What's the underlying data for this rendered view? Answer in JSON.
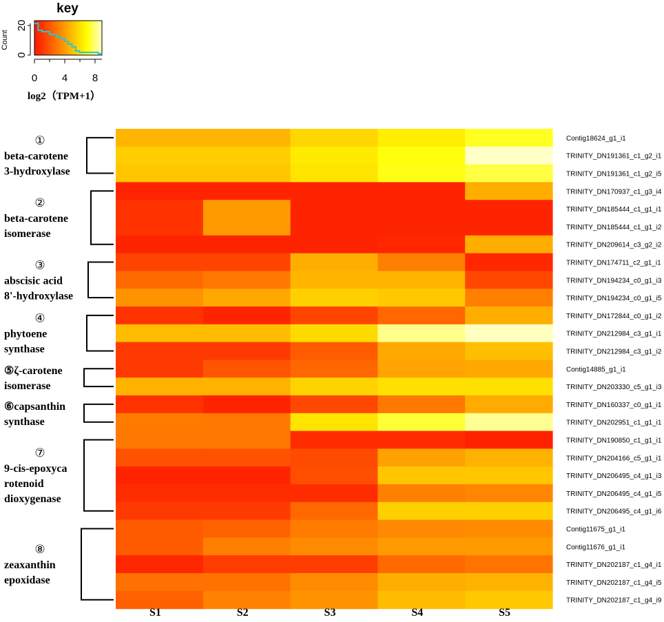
{
  "chart_data": {
    "type": "heatmap",
    "key": {
      "title": "key",
      "ylabel": "Count",
      "yticks": [
        "0",
        "20"
      ],
      "xticks": [
        "0",
        "4",
        "8"
      ],
      "xlabel": "log2（TPM+1）",
      "range": [
        0,
        9
      ],
      "histogram": [
        23,
        18,
        17,
        17,
        15,
        15,
        13,
        12,
        10,
        8,
        6,
        3,
        2,
        2,
        2,
        2,
        2,
        1
      ],
      "palette": [
        "#ff1a00",
        "#ff3300",
        "#ff5500",
        "#ff7800",
        "#ff9a00",
        "#ffbc00",
        "#ffdd00",
        "#ffff00",
        "#ffff70",
        "#ffffc8"
      ]
    },
    "samples": [
      "S1",
      "S2",
      "S3",
      "S4",
      "S5"
    ],
    "rows": [
      {
        "label": "Contig18624_g1_i1",
        "values": [
          4.8,
          4.8,
          5.8,
          6.5,
          7.3
        ]
      },
      {
        "label": "TRINITY_DN191361_c1_g2_i1",
        "values": [
          5.5,
          5.5,
          6.4,
          7.1,
          9.0
        ]
      },
      {
        "label": "TRINITY_DN191361_c1_g2_i5",
        "values": [
          5.3,
          5.3,
          6.2,
          7.2,
          7.6
        ]
      },
      {
        "label": "TRINITY_DN170937_c1_g3_i4",
        "values": [
          0.4,
          0.4,
          0.4,
          0.4,
          4.6
        ]
      },
      {
        "label": "TRINITY_DN185444_c1_g1_i1",
        "values": [
          1.0,
          4.0,
          0.4,
          0.4,
          0.4
        ]
      },
      {
        "label": "TRINITY_DN185444_c1_g1_i2",
        "values": [
          1.0,
          4.0,
          0.4,
          0.4,
          0.4
        ]
      },
      {
        "label": "TRINITY_DN209614_c3_g2_i2",
        "values": [
          0.4,
          0.4,
          0.4,
          0.5,
          4.6
        ]
      },
      {
        "label": "TRINITY_DN174711_c2_g1_i1",
        "values": [
          1.5,
          1.5,
          4.6,
          3.2,
          0.5
        ]
      },
      {
        "label": "TRINITY_DN194234_c0_g1_i3",
        "values": [
          2.6,
          3.0,
          4.8,
          4.8,
          1.6
        ]
      },
      {
        "label": "TRINITY_DN194234_c0_g1_i5",
        "values": [
          3.8,
          4.4,
          5.6,
          5.4,
          3.2
        ]
      },
      {
        "label": "TRINITY_DN172844_c0_g1_i2",
        "values": [
          1.0,
          0.4,
          1.5,
          2.5,
          4.6
        ]
      },
      {
        "label": "TRINITY_DN212984_c3_g1_i1",
        "values": [
          5.0,
          5.0,
          5.9,
          8.3,
          8.9
        ]
      },
      {
        "label": "TRINITY_DN212984_c3_g1_i2",
        "values": [
          1.2,
          1.2,
          2.2,
          4.4,
          5.1
        ]
      },
      {
        "label": "Contig14885_g1_i1",
        "values": [
          1.2,
          2.0,
          2.5,
          4.3,
          4.4
        ]
      },
      {
        "label": "TRINITY_DN203330_c5_g1_i3",
        "values": [
          4.7,
          4.7,
          5.7,
          6.1,
          6.1
        ]
      },
      {
        "label": "TRINITY_DN160337_c0_g1_i1",
        "values": [
          1.0,
          0.4,
          1.6,
          3.0,
          4.5
        ]
      },
      {
        "label": "TRINITY_DN202951_c1_g1_i1",
        "values": [
          3.1,
          3.0,
          6.2,
          7.5,
          8.4
        ]
      },
      {
        "label": "TRINITY_DN190850_c1_g1_i1",
        "values": [
          3.0,
          3.0,
          0.7,
          0.7,
          0.3
        ]
      },
      {
        "label": "TRINITY_DN204166_c5_g1_i1",
        "values": [
          1.9,
          1.9,
          1.7,
          4.2,
          4.7
        ]
      },
      {
        "label": "TRINITY_DN206495_c4_g1_i3",
        "values": [
          0.4,
          0.4,
          1.8,
          5.3,
          5.3
        ]
      },
      {
        "label": "TRINITY_DN206495_c4_g1_i5",
        "values": [
          0.7,
          0.7,
          0.7,
          3.2,
          3.4
        ]
      },
      {
        "label": "TRINITY_DN206495_c4_g1_i6",
        "values": [
          1.2,
          1.2,
          2.5,
          5.6,
          5.6
        ]
      },
      {
        "label": "Contig11675_g1_i1",
        "values": [
          2.2,
          2.4,
          3.1,
          3.5,
          3.6
        ]
      },
      {
        "label": "Contig11676_g1_i1",
        "values": [
          2.2,
          3.2,
          3.6,
          4.0,
          4.0
        ]
      },
      {
        "label": "TRINITY_DN202187_c1_g4_i1",
        "values": [
          0.5,
          1.3,
          1.3,
          2.6,
          2.9
        ]
      },
      {
        "label": "TRINITY_DN202187_c1_g4_i5",
        "values": [
          2.8,
          2.8,
          3.6,
          4.6,
          4.7
        ]
      },
      {
        "label": "TRINITY_DN202187_c1_g4_i9",
        "values": [
          2.3,
          3.3,
          3.8,
          5.0,
          5.4
        ]
      }
    ],
    "groups": [
      {
        "num": "①",
        "lines": [
          "①",
          "beta-carotene",
          "3-hydroxylase"
        ],
        "start": 0,
        "end": 2
      },
      {
        "num": "②",
        "lines": [
          "②",
          "beta-carotene",
          "isomerase"
        ],
        "start": 3,
        "end": 6
      },
      {
        "num": "③",
        "lines": [
          "③",
          "abscisic acid",
          "8'-hydroxylase"
        ],
        "start": 7,
        "end": 9
      },
      {
        "num": "④",
        "lines": [
          "④",
          "phytoene",
          "synthase"
        ],
        "start": 10,
        "end": 12
      },
      {
        "num": "⑤",
        "lines": [
          "⑤ζ-carotene",
          "isomerase"
        ],
        "start": 13,
        "end": 14
      },
      {
        "num": "⑥",
        "lines": [
          "⑥capsanthin",
          "synthase"
        ],
        "start": 15,
        "end": 16
      },
      {
        "num": "⑦",
        "lines": [
          "⑦",
          "9-cis-epoxyca",
          "rotenoid",
          "dioxygenase"
        ],
        "start": 17,
        "end": 21
      },
      {
        "num": "⑧",
        "lines": [
          "⑧",
          "zeaxanthin",
          "epoxidase"
        ],
        "start": 22,
        "end": 26
      }
    ]
  }
}
